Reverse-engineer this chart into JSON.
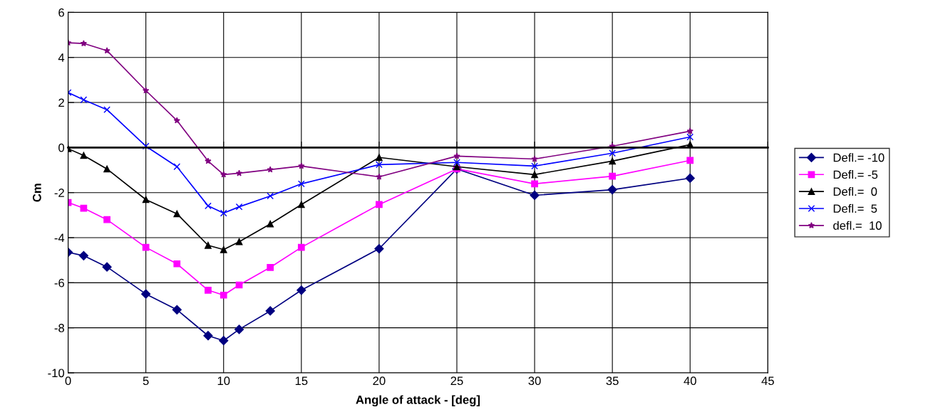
{
  "chart_data": {
    "type": "line",
    "xlabel": "Angle of attack - [deg]",
    "ylabel": "Cm",
    "x": [
      0,
      1,
      2.5,
      5,
      7,
      9,
      10,
      11,
      13,
      15,
      20,
      25,
      30,
      35,
      40
    ],
    "xlim": [
      0,
      45
    ],
    "xticks": [
      0,
      5,
      10,
      15,
      20,
      25,
      30,
      35,
      40,
      45
    ],
    "ylim": [
      -10,
      6
    ],
    "yticks": [
      -10,
      -8,
      -6,
      -4,
      -2,
      0,
      2,
      4,
      6
    ],
    "grid": true,
    "legend": "right",
    "series": [
      {
        "name": "Defl.= -10",
        "color": "#000080",
        "marker": "diamond",
        "values": [
          -4.65,
          -4.8,
          -5.3,
          -6.5,
          -7.2,
          -8.35,
          -8.57,
          -8.07,
          -7.25,
          -6.33,
          -4.49,
          -0.95,
          -2.12,
          -1.87,
          -1.36
        ]
      },
      {
        "name": "Defl.= -5",
        "color": "#ff00ff",
        "marker": "square",
        "values": [
          -2.44,
          -2.69,
          -3.2,
          -4.43,
          -5.16,
          -6.33,
          -6.55,
          -6.1,
          -5.32,
          -4.43,
          -2.53,
          -0.95,
          -1.61,
          -1.27,
          -0.57
        ]
      },
      {
        "name": "Defl.=  0",
        "color": "#000000",
        "marker": "triangle",
        "values": [
          -0.05,
          -0.35,
          -0.95,
          -2.31,
          -2.94,
          -4.34,
          -4.53,
          -4.18,
          -3.39,
          -2.53,
          -0.44,
          -0.85,
          -1.2,
          -0.6,
          0.13
        ]
      },
      {
        "name": "Defl.=  5",
        "color": "#0000ff",
        "marker": "cross",
        "values": [
          2.44,
          2.12,
          1.68,
          0.06,
          -0.85,
          -2.59,
          -2.91,
          -2.63,
          -2.15,
          -1.61,
          -0.76,
          -0.66,
          -0.82,
          -0.25,
          0.47
        ]
      },
      {
        "name": "defl.=  10",
        "color": "#800080",
        "marker": "star",
        "values": [
          4.65,
          4.62,
          4.3,
          2.53,
          1.2,
          -0.6,
          -1.2,
          -1.14,
          -0.98,
          -0.82,
          -1.3,
          -0.38,
          -0.51,
          0.06,
          0.73
        ]
      }
    ]
  }
}
